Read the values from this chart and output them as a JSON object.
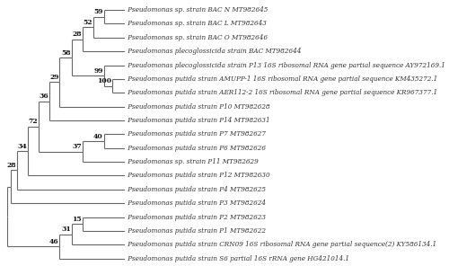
{
  "taxa": [
    "Pseudomonas sp. strain BAC N MT982645",
    "Pseudomonas sp. strain BAC L MT982643",
    "Pseudomonas sp. strain BAC O MT982646",
    "Pseudomonas plecoglossicida strain BAC MT982644",
    "Pseudomonas plecoglossicida strain P13 16S ribosomal RNA gene partial sequence AY972169.1",
    "Pseudomonas putida strain AMUPP-1 16S ribosomal RNA gene partial sequence KM435272.1",
    "Pseudomonas putida strain AER112-2 16S ribosomal RNA gene partial sequence KR967377.1",
    "Pseudomonas putida strain P10 MT982628",
    "Pseudomonas putida strain P14 MT982631",
    "Pseudomonas putida strain P7 MT982627",
    "Pseudomonas putida strain P6 MT982626",
    "Pseudomonas sp. strain P11 MT982629",
    "Pseudomonas putida strain P12 MT982630",
    "Pseudomonas putida strain P4 MT982625",
    "Pseudomonas putida strain P3 MT982624",
    "Pseudomonas putida strain P2 MT982623",
    "Pseudomonas putida strain P1 MT982622",
    "Pseudomonas putida strain CRN09 16S ribosomal RNA gene partial sequence(2) KY586134.1",
    "Pseudomonas putida strain S6 partial 16S rRNA gene HG421014.1"
  ],
  "line_color": "#666666",
  "label_color": "#333333",
  "label_fontsize": 5.2,
  "bootstrap_fontsize": 5.5,
  "background_color": "#ffffff",
  "lw": 0.8
}
